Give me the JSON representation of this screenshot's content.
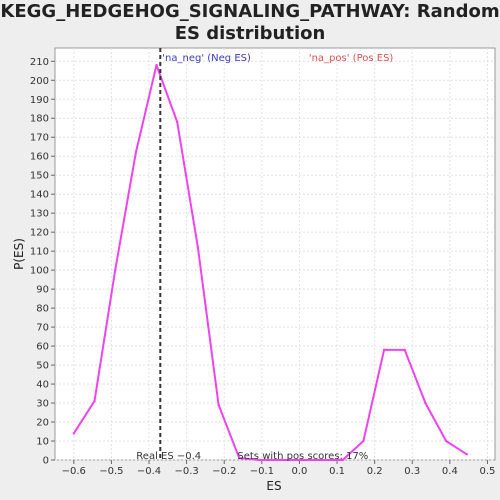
{
  "title": "KEGG_HEDGEHOG_SIGNALING_PATHWAY: Random ES distribution",
  "chart_data": {
    "type": "line",
    "title": "KEGG_HEDGEHOG_SIGNALING_PATHWAY: Random ES distribution",
    "xlabel": "ES",
    "ylabel": "P(ES)",
    "xlim": [
      -0.65,
      0.52
    ],
    "ylim": [
      0,
      217
    ],
    "x_ticks": [
      "-0.6",
      "-0.5",
      "-0.4",
      "-0.3",
      "-0.2",
      "-0.1",
      "0.0",
      "0.1",
      "0.2",
      "0.3",
      "0.4",
      "0.5"
    ],
    "y_ticks": [
      "0",
      "10",
      "20",
      "30",
      "40",
      "50",
      "60",
      "70",
      "80",
      "90",
      "100",
      "110",
      "120",
      "130",
      "140",
      "150",
      "160",
      "170",
      "180",
      "190",
      "200",
      "210"
    ],
    "grid": true,
    "series": [
      {
        "color": "#ee44ee",
        "x": [
          -0.6,
          -0.545,
          -0.49,
          -0.435,
          -0.38,
          -0.325,
          -0.27,
          -0.215,
          -0.16,
          -0.105,
          -0.05,
          0.005,
          0.06,
          0.115,
          0.17,
          0.225,
          0.28,
          0.335,
          0.39,
          0.445
        ],
        "y": [
          14,
          31,
          100,
          162,
          208,
          178,
          112,
          29,
          1,
          0,
          0,
          0,
          0,
          0,
          10,
          58,
          58,
          30,
          10,
          3
        ]
      }
    ],
    "annotations": {
      "neg_label": "'na_neg' (Neg ES)",
      "neg_color": "#3b3bbf",
      "pos_label": "'na_pos' (Pos ES)",
      "pos_color": "#e05050",
      "real_es_value": -0.37,
      "real_es_label": "Real ES −0.4",
      "sets_label": "Sets with pos scores: 17%"
    }
  }
}
